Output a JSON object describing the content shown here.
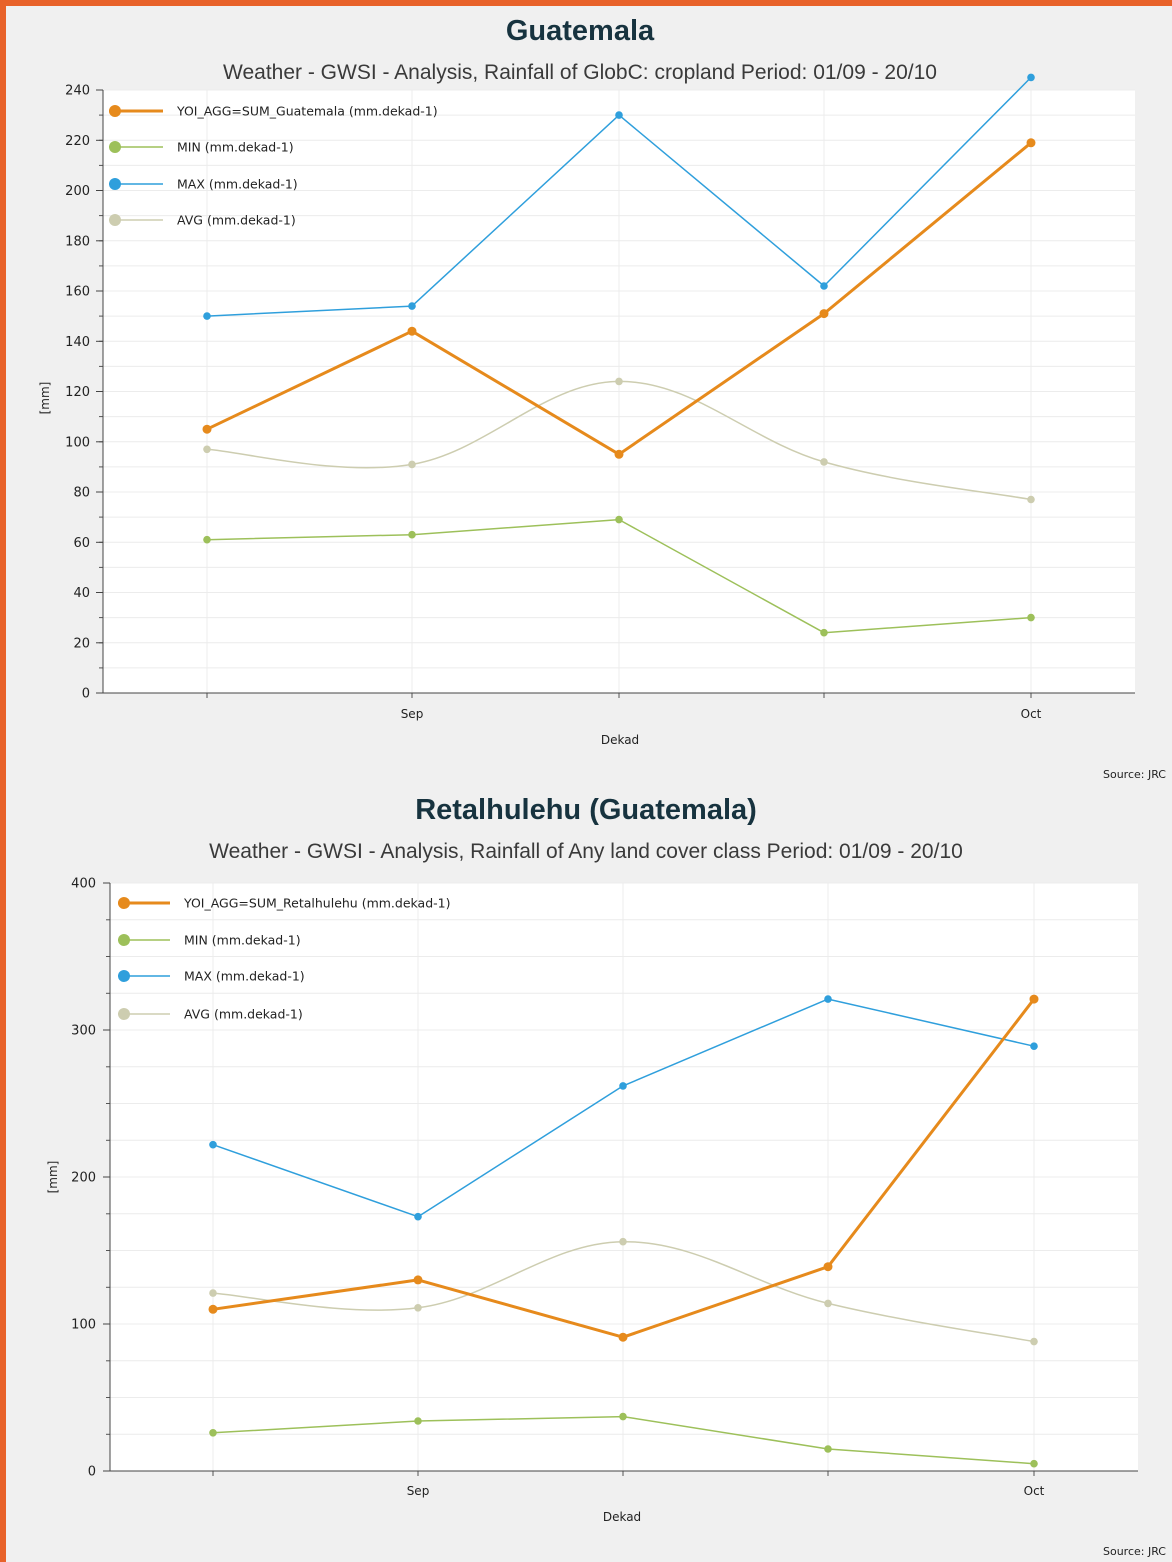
{
  "colors": {
    "frame": "#e8622a",
    "yoi": "#e68a1c",
    "min": "#9dc05a",
    "max": "#2f9fdc",
    "avg": "#cdcdb0"
  },
  "chart_data": [
    {
      "type": "line",
      "title": "Guatemala",
      "subtitle": "Weather - GWSI - Analysis, Rainfall of GlobC: cropland  Period: 01/09 - 20/10",
      "xlabel": "Dekad",
      "ylabel": "[mm]",
      "source": "Source: JRC",
      "x_tick_labels": [
        "",
        "Sep",
        "",
        "",
        "Oct"
      ],
      "ylim": [
        0,
        240
      ],
      "y_ticks": [
        0,
        20,
        40,
        60,
        80,
        100,
        120,
        140,
        160,
        180,
        200,
        220,
        240
      ],
      "grid": true,
      "legend_position": "top-left",
      "series": [
        {
          "name": "YOI_AGG=SUM_Guatemala (mm.dekad-1)",
          "color_key": "yoi",
          "width": 3,
          "smooth": false,
          "values": [
            105,
            144,
            95,
            151,
            219
          ]
        },
        {
          "name": "MIN (mm.dekad-1)",
          "color_key": "min",
          "width": 1.5,
          "smooth": false,
          "values": [
            61,
            63,
            69,
            24,
            30
          ]
        },
        {
          "name": "MAX (mm.dekad-1)",
          "color_key": "max",
          "width": 1.5,
          "smooth": false,
          "values": [
            150,
            154,
            230,
            162,
            245
          ]
        },
        {
          "name": "AVG (mm.dekad-1)",
          "color_key": "avg",
          "width": 1.5,
          "smooth": true,
          "values": [
            97,
            91,
            124,
            92,
            77
          ]
        }
      ]
    },
    {
      "type": "line",
      "title": "Retalhulehu (Guatemala)",
      "subtitle": "Weather - GWSI - Analysis, Rainfall of Any land cover class  Period: 01/09 - 20/10",
      "xlabel": "Dekad",
      "ylabel": "[mm]",
      "source": "Source: JRC",
      "x_tick_labels": [
        "",
        "Sep",
        "",
        "",
        "Oct"
      ],
      "ylim": [
        0,
        400
      ],
      "y_ticks": [
        0,
        100,
        200,
        300,
        400
      ],
      "grid": true,
      "legend_position": "top-left",
      "series": [
        {
          "name": "YOI_AGG=SUM_Retalhulehu (mm.dekad-1)",
          "color_key": "yoi",
          "width": 3,
          "smooth": false,
          "values": [
            110,
            130,
            91,
            139,
            321
          ]
        },
        {
          "name": "MIN (mm.dekad-1)",
          "color_key": "min",
          "width": 1.5,
          "smooth": false,
          "values": [
            26,
            34,
            37,
            15,
            5
          ]
        },
        {
          "name": "MAX (mm.dekad-1)",
          "color_key": "max",
          "width": 1.5,
          "smooth": false,
          "values": [
            222,
            173,
            262,
            321,
            289
          ]
        },
        {
          "name": "AVG (mm.dekad-1)",
          "color_key": "avg",
          "width": 1.5,
          "smooth": true,
          "values": [
            121,
            111,
            156,
            114,
            88
          ]
        }
      ]
    }
  ]
}
